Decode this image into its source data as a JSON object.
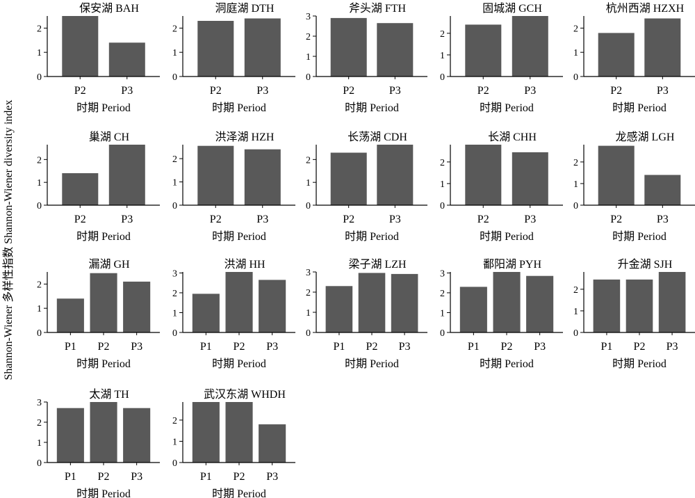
{
  "ylabel": "Shannon-Wiener 多样性指数 Shannon-Wiener diversity index",
  "colors": {
    "bar": "#595959",
    "axis": "#000000"
  },
  "chart_data": [
    {
      "type": "bar",
      "title": "保安湖 BAH",
      "xlabel": "时期 Period",
      "categories": [
        "P2",
        "P3"
      ],
      "values": [
        2.5,
        1.4
      ],
      "ylim": [
        0,
        2.5
      ],
      "yticks": [
        0,
        1,
        2
      ]
    },
    {
      "type": "bar",
      "title": "洞庭湖 DTH",
      "xlabel": "时期 Period",
      "categories": [
        "P2",
        "P3"
      ],
      "values": [
        2.3,
        2.4
      ],
      "ylim": [
        0,
        2.5
      ],
      "yticks": [
        0,
        1,
        2
      ]
    },
    {
      "type": "bar",
      "title": "斧头湖 FTH",
      "xlabel": "时期 Period",
      "categories": [
        "P2",
        "P3"
      ],
      "values": [
        2.9,
        2.65
      ],
      "ylim": [
        0,
        3.0
      ],
      "yticks": [
        0,
        1,
        2,
        3
      ]
    },
    {
      "type": "bar",
      "title": "固城湖 GCH",
      "xlabel": "时期 Period",
      "categories": [
        "P2",
        "P3"
      ],
      "values": [
        2.4,
        2.8
      ],
      "ylim": [
        0,
        2.8
      ],
      "yticks": [
        0,
        1,
        2
      ]
    },
    {
      "type": "bar",
      "title": "杭州西湖 HZXH",
      "xlabel": "时期 Period",
      "categories": [
        "P2",
        "P3"
      ],
      "values": [
        1.8,
        2.4
      ],
      "ylim": [
        0,
        2.5
      ],
      "yticks": [
        0,
        1,
        2
      ]
    },
    {
      "type": "bar",
      "title": "巢湖 CH",
      "xlabel": "时期 Period",
      "categories": [
        "P2",
        "P3"
      ],
      "values": [
        1.4,
        2.65
      ],
      "ylim": [
        0,
        2.65
      ],
      "yticks": [
        0,
        1,
        2
      ]
    },
    {
      "type": "bar",
      "title": "洪泽湖 HZH",
      "xlabel": "时期 Period",
      "categories": [
        "P2",
        "P3"
      ],
      "values": [
        2.55,
        2.4
      ],
      "ylim": [
        0,
        2.6
      ],
      "yticks": [
        0,
        1,
        2
      ]
    },
    {
      "type": "bar",
      "title": "长荡湖 CDH",
      "xlabel": "时期 Period",
      "categories": [
        "P2",
        "P3"
      ],
      "values": [
        2.3,
        2.65
      ],
      "ylim": [
        0,
        2.65
      ],
      "yticks": [
        0,
        1,
        2
      ]
    },
    {
      "type": "bar",
      "title": "长湖 CHH",
      "xlabel": "时期 Period",
      "categories": [
        "P2",
        "P3"
      ],
      "values": [
        2.8,
        2.45
      ],
      "ylim": [
        0,
        2.8
      ],
      "yticks": [
        0,
        1,
        2
      ]
    },
    {
      "type": "bar",
      "title": "龙感湖 LGH",
      "xlabel": "时期 Period",
      "categories": [
        "P2",
        "P3"
      ],
      "values": [
        2.75,
        1.4
      ],
      "ylim": [
        0,
        2.8
      ],
      "yticks": [
        0,
        1,
        2
      ]
    },
    {
      "type": "bar",
      "title": "漏湖 GH",
      "xlabel": "时期 Period",
      "categories": [
        "P1",
        "P2",
        "P3"
      ],
      "values": [
        1.4,
        2.45,
        2.1
      ],
      "ylim": [
        0,
        2.5
      ],
      "yticks": [
        0,
        1,
        2
      ]
    },
    {
      "type": "bar",
      "title": "洪湖 HH",
      "xlabel": "时期 Period",
      "categories": [
        "P1",
        "P2",
        "P3"
      ],
      "values": [
        1.95,
        3.05,
        2.65
      ],
      "ylim": [
        0,
        3.05
      ],
      "yticks": [
        0,
        1,
        2,
        3
      ]
    },
    {
      "type": "bar",
      "title": "梁子湖 LZH",
      "xlabel": "时期 Period",
      "categories": [
        "P1",
        "P2",
        "P3"
      ],
      "values": [
        2.3,
        2.95,
        2.9
      ],
      "ylim": [
        0,
        3.0
      ],
      "yticks": [
        0,
        1,
        2,
        3
      ]
    },
    {
      "type": "bar",
      "title": "鄱阳湖 PYH",
      "xlabel": "时期 Period",
      "categories": [
        "P1",
        "P2",
        "P3"
      ],
      "values": [
        2.3,
        3.05,
        2.85
      ],
      "ylim": [
        0,
        3.05
      ],
      "yticks": [
        0,
        1,
        2,
        3
      ]
    },
    {
      "type": "bar",
      "title": "升金湖 SJH",
      "xlabel": "时期 Period",
      "categories": [
        "P1",
        "P2",
        "P3"
      ],
      "values": [
        2.45,
        2.45,
        2.8
      ],
      "ylim": [
        0,
        2.8
      ],
      "yticks": [
        0,
        1,
        2
      ]
    },
    {
      "type": "bar",
      "title": "太湖 TH",
      "xlabel": "时期 Period",
      "categories": [
        "P1",
        "P2",
        "P3"
      ],
      "values": [
        2.7,
        3.0,
        2.7
      ],
      "ylim": [
        0,
        3.0
      ],
      "yticks": [
        0,
        1,
        2,
        3
      ]
    },
    {
      "type": "bar",
      "title": "武汉东湖 WHDH",
      "xlabel": "时期 Period",
      "categories": [
        "P1",
        "P2",
        "P3"
      ],
      "values": [
        2.85,
        2.85,
        1.8
      ],
      "ylim": [
        0,
        2.85
      ],
      "yticks": [
        0,
        1,
        2
      ]
    }
  ]
}
